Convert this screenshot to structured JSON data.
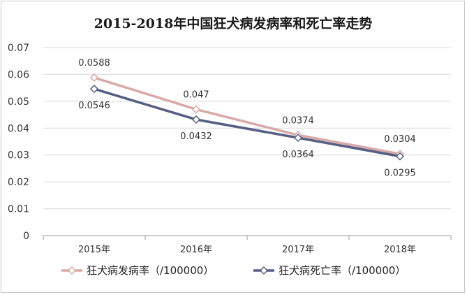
{
  "chart_data": {
    "type": "line",
    "title": "2015-2018年中国狂犬病发病率和死亡率走势",
    "categories": [
      "2015年",
      "2016年",
      "2017年",
      "2018年"
    ],
    "y_ticks": [
      "0",
      "0.01",
      "0.02",
      "0.03",
      "0.04",
      "0.05",
      "0.06",
      "0.07"
    ],
    "ylim": [
      0,
      0.07
    ],
    "grid": "horizontal",
    "legend_position": "bottom",
    "series": [
      {
        "name": "狂犬病发病率（/100000）",
        "values": [
          0.0588,
          0.047,
          0.0374,
          0.0304
        ],
        "labels": [
          "0.0588",
          "0.047",
          "0.0374",
          "0.0304"
        ],
        "label_position": "above",
        "color": "#d8a9a6"
      },
      {
        "name": "狂犬病死亡率（/100000）",
        "values": [
          0.0546,
          0.0432,
          0.0364,
          0.0295
        ],
        "labels": [
          "0.0546",
          "0.0432",
          "0.0364",
          "0.0295"
        ],
        "label_position": "below",
        "color": "#555f85"
      }
    ]
  }
}
